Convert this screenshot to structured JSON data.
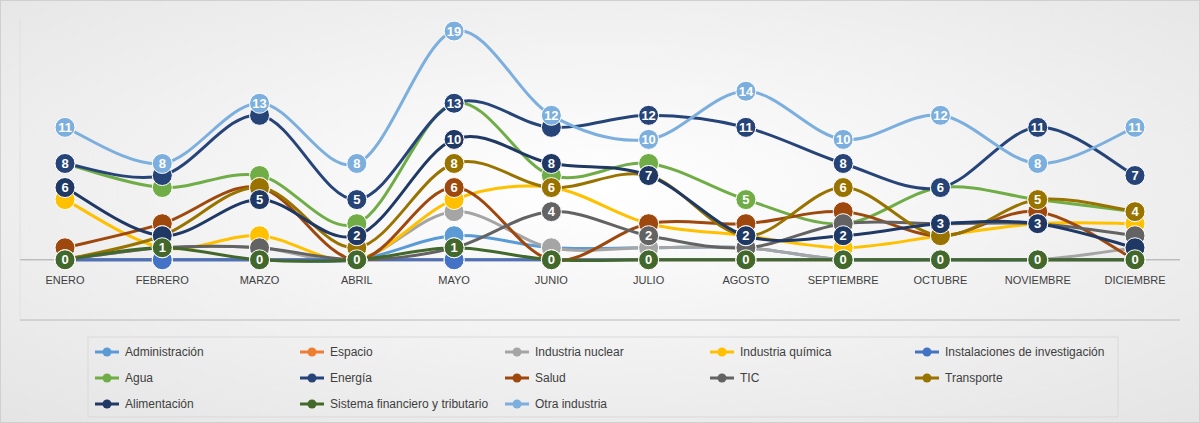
{
  "chart_data": {
    "type": "line",
    "categories": [
      "ENERO",
      "FEBRERO",
      "MARZO",
      "ABRIL",
      "MAYO",
      "JUNIO",
      "JULIO",
      "AGOSTO",
      "SEPTIEMBRE",
      "OCTUBRE",
      "NOVIEMBRE",
      "DICIEMBRE"
    ],
    "series": [
      {
        "name": "Administración",
        "color": "#5b9bd5",
        "values": [
          0,
          0,
          0,
          0,
          2,
          1,
          1,
          1,
          0,
          0,
          0,
          0
        ]
      },
      {
        "name": "Espacio",
        "color": "#ed7d31",
        "values": [
          0,
          0,
          0,
          0,
          0,
          0,
          0,
          0,
          0,
          0,
          0,
          0
        ]
      },
      {
        "name": "Industria nuclear",
        "color": "#a5a5a5",
        "values": [
          0,
          1,
          1,
          0,
          4,
          1,
          1,
          1,
          0,
          0,
          0,
          1
        ]
      },
      {
        "name": "Industria química",
        "color": "#ffc000",
        "values": [
          5,
          1,
          2,
          0,
          5,
          6,
          3,
          2,
          1,
          2,
          3,
          3
        ]
      },
      {
        "name": "Instalaciones de investigación",
        "color": "#4472c4",
        "values": [
          0,
          0,
          0,
          0,
          0,
          0,
          0,
          0,
          0,
          0,
          0,
          0
        ]
      },
      {
        "name": "Agua",
        "color": "#70ad47",
        "values": [
          8,
          6,
          7,
          3,
          13,
          7,
          8,
          5,
          3,
          6,
          5,
          4
        ]
      },
      {
        "name": "Energía",
        "color": "#264478",
        "values": [
          8,
          7,
          12,
          5,
          13,
          11,
          12,
          11,
          8,
          6,
          11,
          7
        ]
      },
      {
        "name": "Salud",
        "color": "#9e480e",
        "values": [
          1,
          3,
          6,
          0,
          6,
          0,
          3,
          3,
          4,
          2,
          4,
          0
        ]
      },
      {
        "name": "TIC",
        "color": "#636363",
        "values": [
          0,
          1,
          1,
          0,
          1,
          4,
          2,
          1,
          3,
          3,
          3,
          2
        ]
      },
      {
        "name": "Transporte",
        "color": "#997300",
        "values": [
          0,
          2,
          6,
          1,
          8,
          6,
          7,
          2,
          6,
          2,
          5,
          4
        ]
      },
      {
        "name": "Alimentación",
        "color": "#1f3864",
        "values": [
          6,
          2,
          5,
          2,
          10,
          8,
          7,
          2,
          2,
          3,
          3,
          1
        ]
      },
      {
        "name": "Sistema financiero y tributario",
        "color": "#43682b",
        "values": [
          0,
          1,
          0,
          0,
          1,
          0,
          0,
          0,
          0,
          0,
          0,
          0
        ]
      },
      {
        "name": "Otra industria",
        "color": "#7cafdd",
        "values": [
          11,
          8,
          13,
          8,
          19,
          12,
          10,
          14,
          10,
          12,
          8,
          11
        ]
      }
    ],
    "ylim": [
      -5,
      20
    ],
    "yticks": [
      -5,
      0
    ],
    "grid": true,
    "data_labels": true,
    "tick_labels": "x",
    "legend": "bottom",
    "marker": "circle",
    "line_style": "smooth"
  }
}
